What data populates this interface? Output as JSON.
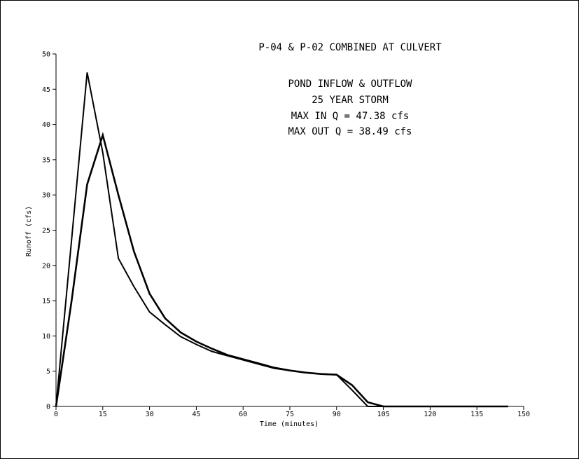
{
  "chart_data": {
    "type": "line",
    "title": "P-04 & P-02 COMBINED AT CULVERT",
    "annotations": [
      "POND INFLOW & OUTFLOW",
      "25 YEAR STORM",
      "MAX IN Q = 47.38 cfs",
      "MAX OUT Q = 38.49 cfs"
    ],
    "xlabel": "Time (minutes)",
    "ylabel": "Runoff (cfs)",
    "xlim": [
      0,
      150
    ],
    "ylim": [
      0,
      50
    ],
    "xticks": [
      "0",
      "15",
      "30",
      "45",
      "60",
      "75",
      "90",
      "105",
      "120",
      "135",
      "150"
    ],
    "yticks": [
      "0",
      "5",
      "10",
      "15",
      "20",
      "25",
      "30",
      "35",
      "40",
      "45",
      "50"
    ],
    "grid": false,
    "series": [
      {
        "x": [
          0,
          5,
          10,
          15,
          20,
          25,
          30,
          35,
          40,
          45,
          50,
          55,
          60,
          65,
          70,
          75,
          80,
          85,
          90,
          95,
          100,
          105,
          110,
          120,
          130,
          145
        ],
        "values": [
          0,
          23.7,
          47.38,
          36.0,
          21.0,
          17.0,
          13.4,
          11.6,
          9.9,
          8.8,
          7.8,
          7.2,
          6.6,
          6.0,
          5.4,
          5.1,
          4.8,
          4.6,
          4.5,
          2.3,
          0,
          0,
          0,
          0,
          0,
          0
        ],
        "color": "#000000"
      },
      {
        "x": [
          0,
          5,
          10,
          15,
          20,
          25,
          30,
          35,
          40,
          45,
          50,
          55,
          60,
          65,
          70,
          75,
          80,
          85,
          90,
          95,
          100,
          105,
          110,
          120,
          130,
          145
        ],
        "values": [
          0,
          15.0,
          31.5,
          38.49,
          30.0,
          22.0,
          16.0,
          12.5,
          10.5,
          9.2,
          8.2,
          7.3,
          6.7,
          6.1,
          5.5,
          5.1,
          4.8,
          4.6,
          4.5,
          3.0,
          0.6,
          0,
          0,
          0,
          0,
          0
        ],
        "color": "#000000"
      }
    ]
  }
}
